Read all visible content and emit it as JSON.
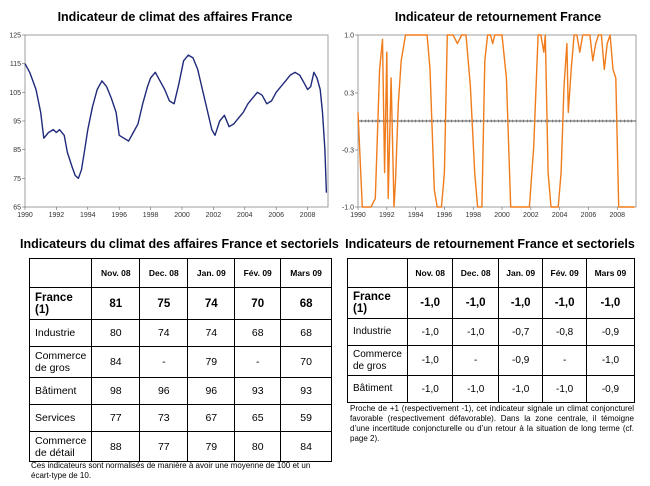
{
  "charts": [
    {
      "title": "Indicateur de climat des affaires France",
      "chart_data": {
        "type": "line",
        "title": "Indicateur de climat des affaires France",
        "xlabel": "",
        "ylabel": "",
        "xlim": [
          1990,
          2009.3
        ],
        "ylim": [
          65,
          125
        ],
        "yticks": [
          "125",
          "115",
          "105",
          "95",
          "85",
          "75",
          "65"
        ],
        "xticks": [
          "1990",
          "1992",
          "1994",
          "1996",
          "1998",
          "2000",
          "2002",
          "2004",
          "2006",
          "2008"
        ],
        "color": "#1f2a7a",
        "x": [
          1990.0,
          1990.3,
          1990.7,
          1991.0,
          1991.2,
          1991.5,
          1991.8,
          1992.0,
          1992.2,
          1992.5,
          1992.7,
          1993.0,
          1993.2,
          1993.4,
          1993.6,
          1993.8,
          1994.0,
          1994.3,
          1994.6,
          1994.9,
          1995.2,
          1995.5,
          1995.8,
          1996.0,
          1996.3,
          1996.6,
          1996.9,
          1997.2,
          1997.5,
          1997.8,
          1998.0,
          1998.3,
          1998.6,
          1998.9,
          1999.2,
          1999.5,
          1999.8,
          2000.1,
          2000.4,
          2000.7,
          2001.0,
          2001.3,
          2001.6,
          2001.9,
          2002.1,
          2002.4,
          2002.7,
          2003.0,
          2003.3,
          2003.6,
          2003.9,
          2004.2,
          2004.5,
          2004.8,
          2005.1,
          2005.4,
          2005.7,
          2006.0,
          2006.3,
          2006.6,
          2006.9,
          2007.2,
          2007.5,
          2007.8,
          2008.0,
          2008.2,
          2008.4,
          2008.6,
          2008.8,
          2008.95,
          2009.1,
          2009.2
        ],
        "y": [
          115,
          112,
          106,
          98,
          89,
          91,
          92,
          91,
          92,
          90,
          84,
          79,
          76,
          75,
          78,
          85,
          92,
          100,
          106,
          109,
          107,
          103,
          98,
          90,
          89,
          88,
          91,
          94,
          101,
          107,
          110,
          112,
          109,
          106,
          102,
          101,
          108,
          116,
          118,
          117,
          113,
          106,
          99,
          92,
          90,
          95,
          97,
          93,
          94,
          96,
          98,
          101,
          103,
          105,
          104,
          101,
          102,
          105,
          107,
          109,
          111,
          112,
          111,
          108,
          106,
          107,
          112,
          110,
          106,
          98,
          85,
          70
        ]
      }
    },
    {
      "title": "Indicateur de retournement France",
      "chart_data": {
        "type": "line",
        "title": "Indicateur de retournement France",
        "xlabel": "",
        "ylabel": "",
        "xlim": [
          1990,
          2009.3
        ],
        "ylim": [
          -1.0,
          1.0
        ],
        "yticks": [
          "1.0",
          "0.3",
          "-0.3",
          "-1.0"
        ],
        "xticks": [
          "1990",
          "1992",
          "1994",
          "1996",
          "1998",
          "2000",
          "2002",
          "2004",
          "2006",
          "2008"
        ],
        "color": "#f07c1c",
        "x": [
          1990.0,
          1990.3,
          1990.6,
          1990.9,
          1991.2,
          1991.5,
          1991.7,
          1991.85,
          1992.0,
          1992.1,
          1992.3,
          1992.5,
          1992.6,
          1992.8,
          1993.0,
          1993.3,
          1993.6,
          1993.9,
          1994.2,
          1994.5,
          1994.8,
          1995.0,
          1995.3,
          1995.5,
          1995.6,
          1995.8,
          1996.0,
          1996.2,
          1996.4,
          1996.6,
          1996.9,
          1997.2,
          1997.5,
          1997.8,
          1998.1,
          1998.3,
          1998.4,
          1998.6,
          1998.8,
          1999.0,
          1999.2,
          1999.35,
          1999.5,
          1999.7,
          2000.0,
          2000.3,
          2000.6,
          2000.8,
          2001.0,
          2001.3,
          2001.6,
          2001.9,
          2002.2,
          2002.5,
          2002.7,
          2002.9,
          2003.0,
          2003.2,
          2003.4,
          2003.6,
          2003.9,
          2004.1,
          2004.3,
          2004.5,
          2004.6,
          2004.8,
          2005.0,
          2005.2,
          2005.4,
          2005.6,
          2005.9,
          2006.1,
          2006.3,
          2006.5,
          2006.7,
          2006.9,
          2007.1,
          2007.3,
          2007.5,
          2007.7,
          2007.9,
          2008.1,
          2008.3,
          2008.5,
          2008.7,
          2009.0,
          2009.2
        ],
        "y": [
          0.1,
          -1.0,
          -1.0,
          -1.0,
          -0.9,
          0.6,
          0.95,
          -0.6,
          0.8,
          -0.9,
          0.5,
          -1.0,
          -0.7,
          0.2,
          0.7,
          1.0,
          1.0,
          1.0,
          1.0,
          1.0,
          1.0,
          0.6,
          -0.8,
          -1.0,
          -1.0,
          -1.0,
          -0.6,
          1.0,
          1.0,
          1.0,
          0.9,
          1.0,
          1.0,
          0.4,
          -0.6,
          -1.0,
          -1.0,
          -1.0,
          0.7,
          1.0,
          1.0,
          0.9,
          1.0,
          1.0,
          1.0,
          0.5,
          -1.0,
          -1.0,
          -1.0,
          -1.0,
          -1.0,
          -1.0,
          -0.3,
          1.0,
          1.0,
          0.8,
          1.0,
          -0.6,
          -1.0,
          -1.0,
          -1.0,
          -0.6,
          0.4,
          0.9,
          0.1,
          0.6,
          1.0,
          1.0,
          0.8,
          1.0,
          1.0,
          1.0,
          0.7,
          0.9,
          1.0,
          1.0,
          0.6,
          0.9,
          1.0,
          0.6,
          0.5,
          -1.0,
          -1.0,
          -1.0,
          -1.0,
          -1.0,
          -1.0
        ]
      }
    }
  ],
  "table1": {
    "title": "Indicateurs du climat des affaires France et sectoriels",
    "columns": [
      "Nov. 08",
      "Dec. 08",
      "Jan. 09",
      "Fév. 09",
      "Mars 09"
    ],
    "rows": [
      {
        "label": "France (1)",
        "values": [
          "81",
          "75",
          "74",
          "70",
          "68"
        ]
      },
      {
        "label": "Industrie",
        "values": [
          "80",
          "74",
          "74",
          "68",
          "68"
        ]
      },
      {
        "label": "Commerce de gros",
        "values": [
          "84",
          "-",
          "79",
          "-",
          "70"
        ]
      },
      {
        "label": "Bâtiment",
        "values": [
          "98",
          "96",
          "96",
          "93",
          "93"
        ]
      },
      {
        "label": "Services",
        "values": [
          "77",
          "73",
          "67",
          "65",
          "59"
        ]
      },
      {
        "label": "Commerce de détail",
        "values": [
          "88",
          "77",
          "79",
          "80",
          "84"
        ]
      }
    ],
    "note": "Ces indicateurs sont normalisés de manière à avoir une moyenne de 100 et un écart-type de 10."
  },
  "table2": {
    "title": "Indicateurs de retournement France et sectoriels",
    "columns": [
      "Nov. 08",
      "Dec. 08",
      "Jan. 09",
      "Fév. 09",
      "Mars 09"
    ],
    "rows": [
      {
        "label": "France (1)",
        "values": [
          "-1,0",
          "-1,0",
          "-1,0",
          "-1,0",
          "-1,0"
        ]
      },
      {
        "label": "Industrie",
        "values": [
          "-1,0",
          "-1,0",
          "-0,7",
          "-0,8",
          "-0,9"
        ]
      },
      {
        "label": "Commerce de gros",
        "values": [
          "-1,0",
          "-",
          "-0,9",
          "-",
          "-1,0"
        ]
      },
      {
        "label": "Bâtiment",
        "values": [
          "-1,0",
          "-1,0",
          "-1,0",
          "-1,0",
          "-0,9"
        ]
      }
    ],
    "note": "Proche de +1 (respectivement -1), cet indicateur signale un climat conjoncturel favorable (respectivement défavorable). Dans la zone centrale, il témoigne d’une incertitude conjoncturelle ou d’un retour à la situation de long terme (cf. page 2)."
  }
}
